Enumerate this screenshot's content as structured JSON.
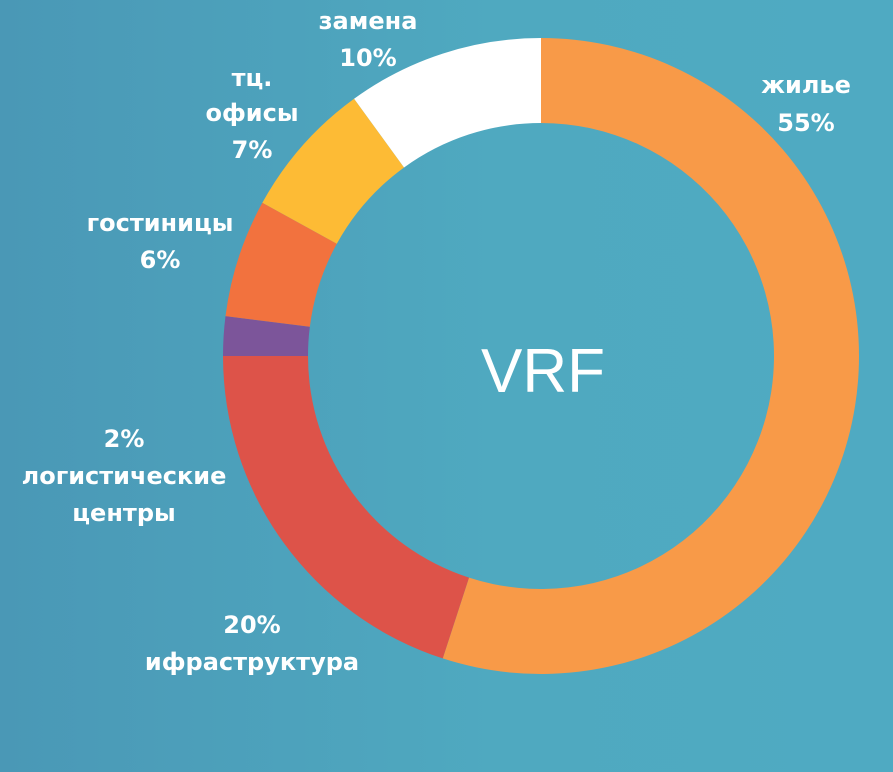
{
  "chart_data": {
    "type": "pie",
    "center_label": "VRF",
    "colors": {
      "жилье": "#f89a48",
      "ифраструктура": "#dd5349",
      "логистические центры": "#7c559a",
      "гостиницы": "#f2723e",
      "тц. офисы": "#fdbb35",
      "замена": "#ffffff"
    },
    "slices": [
      {
        "label": "жилье",
        "value": 55,
        "value_text": "55%"
      },
      {
        "label": "ифраструктура",
        "value": 20,
        "value_text": "20%"
      },
      {
        "label": "логистические центры",
        "value": 2,
        "value_text": "2%"
      },
      {
        "label": "гостиницы",
        "value": 6,
        "value_text": "6%"
      },
      {
        "label": "тц. офисы",
        "value": 7,
        "value_text": "7%"
      },
      {
        "label": "замена",
        "value": 10,
        "value_text": "10%"
      }
    ]
  }
}
